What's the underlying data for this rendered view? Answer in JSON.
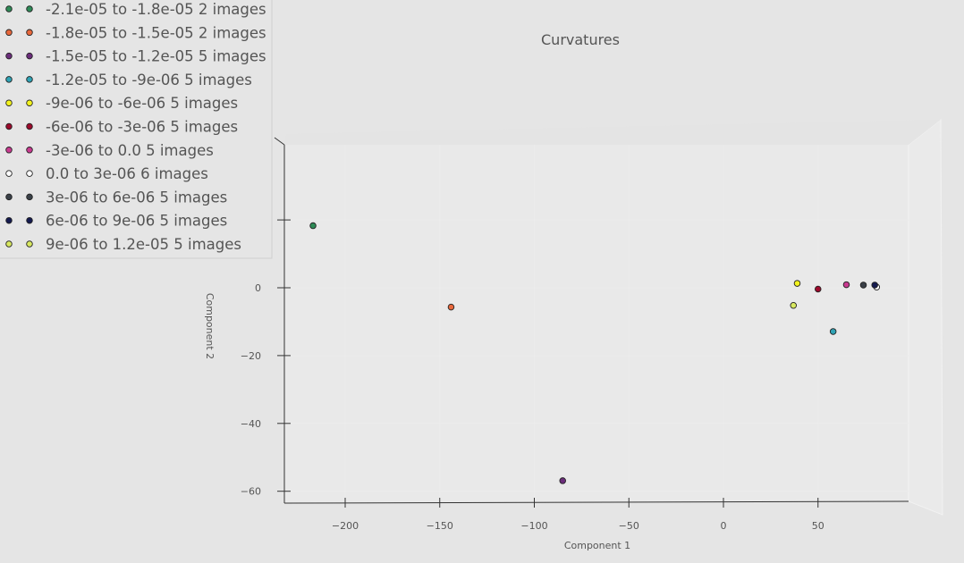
{
  "chart_data": {
    "type": "scatter",
    "title": "Curvatures",
    "xlabel": "Component 1",
    "ylabel": "Component 2",
    "xlim": [
      -235,
      98
    ],
    "ylim": [
      -64,
      22
    ],
    "x_ticks": [
      -200,
      -150,
      -100,
      -50,
      0,
      50
    ],
    "y_ticks": [
      0,
      -20,
      -40,
      -60
    ],
    "grid": true,
    "legend_position": "top-left",
    "series": [
      {
        "name": "-2.1e-05 to -1.8e-05 2 images",
        "color": "#2e8b57",
        "points": [
          [
            -217,
            18.3
          ]
        ]
      },
      {
        "name": "-1.8e-05 to -1.5e-05 2 images",
        "color": "#e8683c",
        "points": [
          [
            -144,
            -5.7
          ]
        ]
      },
      {
        "name": "-1.5e-05 to -1.2e-05 5 images",
        "color": "#6b2d7b",
        "points": [
          [
            -85,
            -56.9
          ]
        ]
      },
      {
        "name": "-1.2e-05 to -9e-06 5 images",
        "color": "#2fa3b5",
        "points": [
          [
            58,
            -12.9
          ]
        ]
      },
      {
        "name": "-9e-06 to -6e-06 5 images",
        "color": "#f3f31e",
        "points": [
          [
            39,
            1.3
          ]
        ]
      },
      {
        "name": "-6e-06 to -3e-06 5 images",
        "color": "#9c0a2c",
        "points": [
          [
            50,
            -0.4
          ]
        ]
      },
      {
        "name": "-3e-06 to 0.0 5 images",
        "color": "#c93a90",
        "points": [
          [
            65,
            0.9
          ]
        ]
      },
      {
        "name": "0.0 to 3e-06 6 images",
        "color": "#ffffff",
        "points": [
          [
            81,
            0.2
          ]
        ]
      },
      {
        "name": "3e-06 to 6e-06 5 images",
        "color": "#3a4048",
        "points": [
          [
            74,
            0.8
          ]
        ]
      },
      {
        "name": "6e-06 to 9e-06 5 images",
        "color": "#141a4f",
        "points": [
          [
            80,
            0.8
          ]
        ]
      },
      {
        "name": "9e-06 to 1.2e-05 5 images",
        "color": "#d8e860",
        "points": [
          [
            37,
            -5.2
          ]
        ]
      }
    ]
  }
}
